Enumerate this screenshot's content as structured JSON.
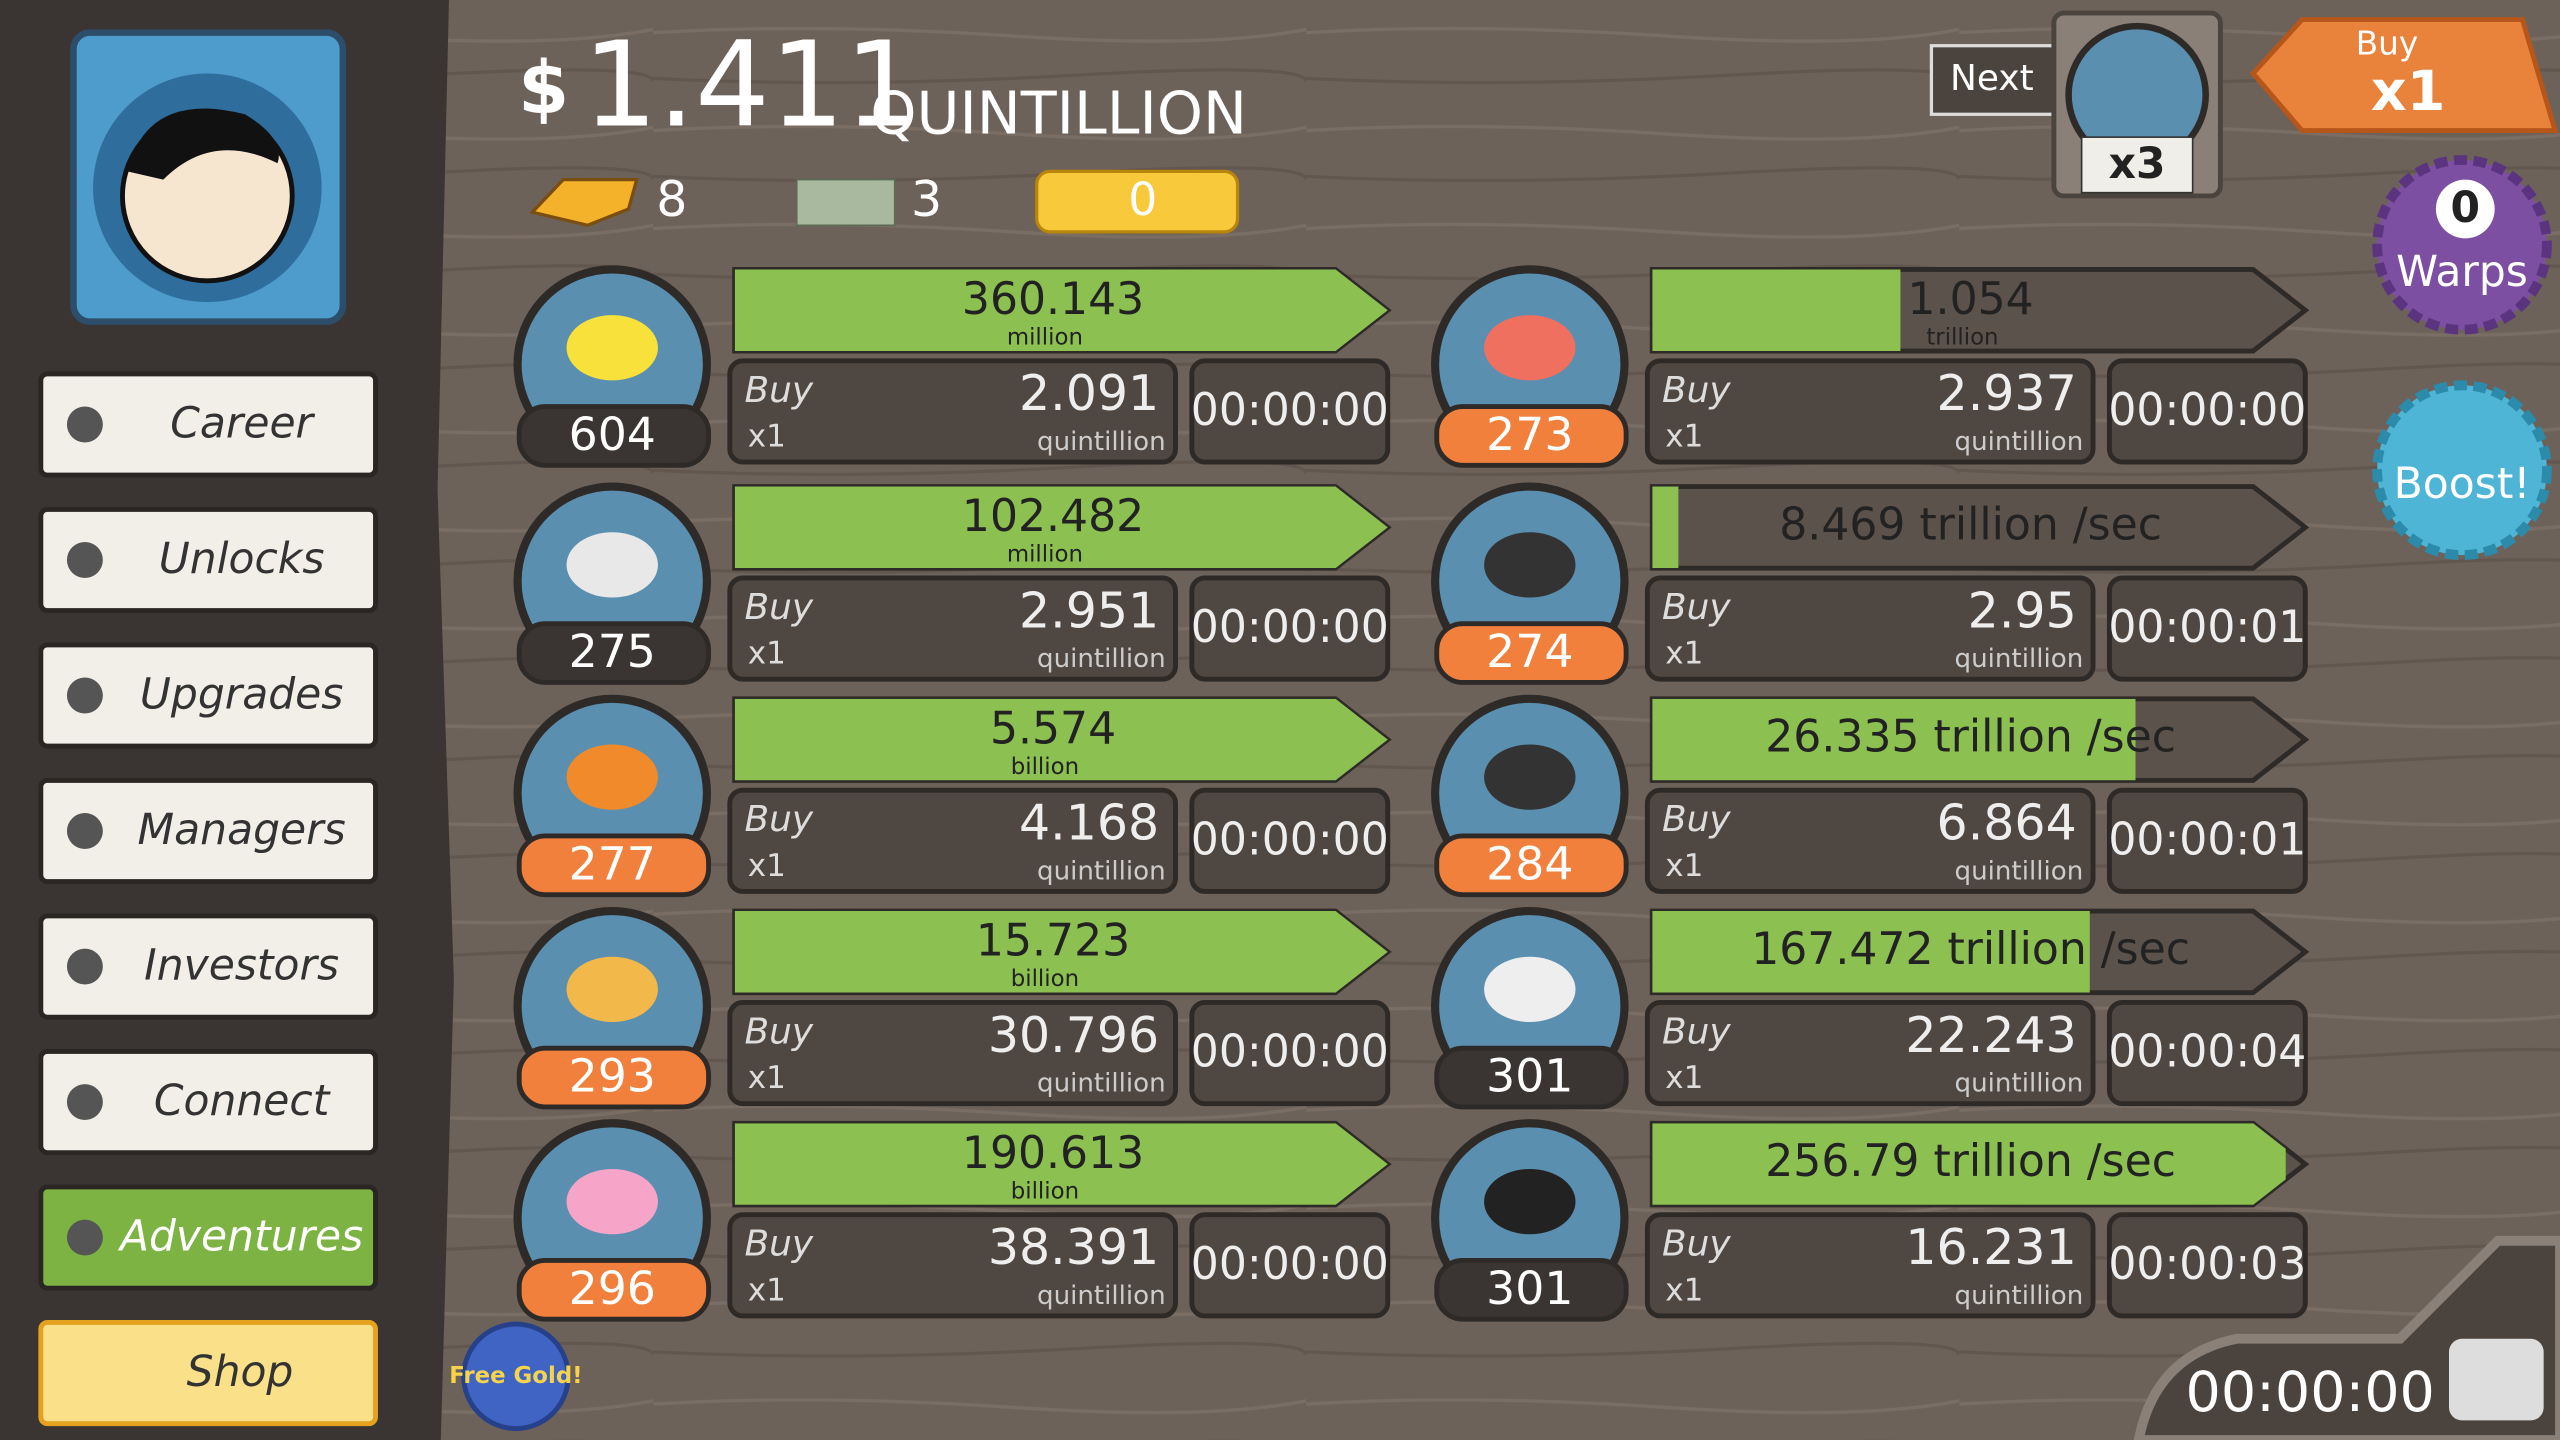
{
  "header": {
    "currency_symbol": "$",
    "money": "1.411",
    "money_unit": "QUINTILLION",
    "gold": "8",
    "megabucks": "3",
    "tickets": "0"
  },
  "top_controls": {
    "next": "Next",
    "manager_multiplier": "x3",
    "buy_label": "Buy",
    "buy_multiplier": "x1",
    "warps_count": "0",
    "warps_label": "Warps",
    "boost": "Boost!"
  },
  "menu": [
    "Career",
    "Unlocks",
    "Upgrades",
    "Managers",
    "Investors",
    "Connect",
    "Adventures",
    "Shop"
  ],
  "free_gold": "Free Gold!",
  "buy_label": "Buy",
  "buy_quantity": "x1",
  "cost_unit": "quintillion",
  "businesses": [
    {
      "owned": "604",
      "badge_color": "#3a3532",
      "revenue": "360.143",
      "revenue_unit": "million",
      "progress": 1,
      "cost": "2.091",
      "time": "00:00:00"
    },
    {
      "owned": "275",
      "badge_color": "#3a3532",
      "revenue": "102.482",
      "revenue_unit": "million",
      "progress": 1,
      "cost": "2.951",
      "time": "00:00:00"
    },
    {
      "owned": "277",
      "badge_color": "#f0803c",
      "revenue": "5.574",
      "revenue_unit": "billion",
      "progress": 1,
      "cost": "4.168",
      "time": "00:00:00"
    },
    {
      "owned": "293",
      "badge_color": "#f0803c",
      "revenue": "15.723",
      "revenue_unit": "billion",
      "progress": 1,
      "cost": "30.796",
      "time": "00:00:00"
    },
    {
      "owned": "296",
      "badge_color": "#f0803c",
      "revenue": "190.613",
      "revenue_unit": "billion",
      "progress": 1,
      "cost": "38.391",
      "time": "00:00:00"
    },
    {
      "owned": "273",
      "badge_color": "#f0803c",
      "revenue": "1.054",
      "revenue_unit": "trillion",
      "progress": 0.38,
      "cost": "2.937",
      "time": "00:00:00"
    },
    {
      "owned": "274",
      "badge_color": "#f0803c",
      "revenue": "8.469 trillion /sec",
      "progress": 0.04,
      "cost": "2.95",
      "time": "00:00:01"
    },
    {
      "owned": "284",
      "badge_color": "#f0803c",
      "revenue": "26.335 trillion /sec",
      "progress": 0.74,
      "cost": "6.864",
      "time": "00:00:01"
    },
    {
      "owned": "301",
      "badge_color": "#3a3532",
      "revenue": "167.472 trillion /sec",
      "progress": 0.67,
      "cost": "22.243",
      "time": "00:00:04"
    },
    {
      "owned": "301",
      "badge_color": "#3a3532",
      "revenue": "256.79 trillion /sec",
      "progress": 0.97,
      "cost": "16.231",
      "time": "00:00:03"
    }
  ],
  "event_timer": "00:00:00"
}
